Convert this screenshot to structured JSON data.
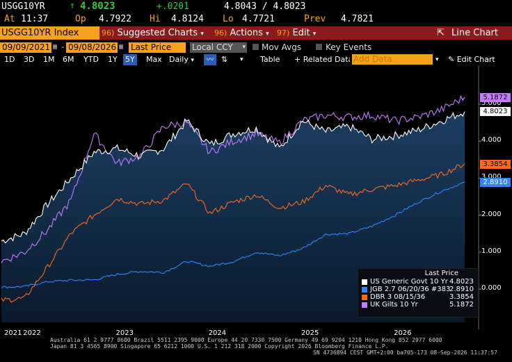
{
  "quote": {
    "ticker": "USGG10YR",
    "arrow": "↑",
    "last": "4.8023",
    "change": "+.0201",
    "bid_ask": "4.8043 / 4.8023",
    "at_label": "At",
    "time": "11:37",
    "op_label": "Op",
    "op": "4.7922",
    "hi_label": "Hi",
    "hi": "4.8124",
    "lo_label": "Lo",
    "lo": "4.7721",
    "prev_label": "Prev",
    "prev": "4.7821"
  },
  "toolbar": {
    "security": "USGG10YR Index",
    "suggested_num": "96)",
    "suggested": "Suggested Charts",
    "actions_num": "96)",
    "actions": "Actions",
    "edit_num": "97)",
    "edit": "Edit",
    "line_chart": "Line Chart"
  },
  "settings": {
    "start_date": "09/09/2021",
    "end_date": "09/08/2026",
    "field": "Last Price",
    "currency": "Local CCY",
    "mov_avgs": "Mov Avgs",
    "key_events": "Key Events"
  },
  "ranges": {
    "items": [
      "1D",
      "3D",
      "1M",
      "6M",
      "YTD",
      "1Y",
      "5Y",
      "Max"
    ],
    "selected": "5Y",
    "freq": "Daily",
    "table": "Table",
    "related": "+ Related Data",
    "add_data": "Add Data",
    "edit_chart": "Edit Chart"
  },
  "legend": {
    "header": "Last Price",
    "items": [
      {
        "label": "US Generic Govt 10 Yr",
        "value": "4.8023",
        "color": "#ffffff"
      },
      {
        "label": "JGB 2.7 06/20/36 #383",
        "value": "2.8910",
        "color": "#2f86ff"
      },
      {
        "label": "DBR 3 08/15/36",
        "value": "3.3854",
        "color": "#ff6a1a"
      },
      {
        "label": "UK Gilts 10 Yr",
        "value": "5.1872",
        "color": "#c57bff"
      }
    ]
  },
  "footer": {
    "line1": "Australia 61 2 9777 8600 Brazil 5511 2395 9000 Europe 44 20 7330 7500 Germany 49 69 9204 1210 Hong Kong 852 2977 6000",
    "line2": "Japan 81 3 4565 8900        Singapore 65 6212 1000        U.S. 1 212 318 2000             Copyright 2026 Bloomberg Finance L.P.",
    "line3": "SN 4736894 CEST GMT+2:00 ba705-173 08-Sep-2026 11:37:57"
  },
  "chart_data": {
    "type": "line",
    "x": [
      "2021-09",
      "2021-12",
      "2022-03",
      "2022-06",
      "2022-09",
      "2022-12",
      "2023-03",
      "2023-06",
      "2023-09",
      "2023-12",
      "2024-03",
      "2024-06",
      "2024-09",
      "2024-12",
      "2025-03",
      "2025-06",
      "2025-09",
      "2025-12",
      "2026-03",
      "2026-06",
      "2026-09"
    ],
    "xticks": [
      "2021",
      "2022",
      "2023",
      "2024",
      "2025",
      "2026"
    ],
    "ylim": [
      -0.9,
      5.9
    ],
    "yticks": [
      "0.000",
      "1.000",
      "2.000",
      "3.000",
      "4.000",
      "5.000"
    ],
    "grid": false,
    "legend_position": "bottom-right",
    "series": [
      {
        "name": "US Generic Govt 10 Yr",
        "color": "#ffffff",
        "last_value": "4.8023",
        "values": [
          1.3,
          1.5,
          2.3,
          3.0,
          3.7,
          3.8,
          3.6,
          3.8,
          4.55,
          3.9,
          4.2,
          4.35,
          3.8,
          4.55,
          4.25,
          4.4,
          4.05,
          4.15,
          4.3,
          4.55,
          4.8
        ]
      },
      {
        "name": "JGB 2.7 06/20/36 #383",
        "color": "#2f86ff",
        "last_value": "2.8910",
        "values": [
          0.05,
          0.07,
          0.2,
          0.24,
          0.25,
          0.4,
          0.48,
          0.45,
          0.75,
          0.62,
          0.74,
          1.0,
          0.9,
          1.1,
          1.48,
          1.5,
          1.7,
          2.0,
          2.35,
          2.65,
          2.89
        ]
      },
      {
        "name": "DBR 3 08/15/36",
        "color": "#ff6a1a",
        "last_value": "3.3854",
        "values": [
          -0.3,
          -0.25,
          0.6,
          1.5,
          2.0,
          2.45,
          2.3,
          2.4,
          2.85,
          2.05,
          2.35,
          2.55,
          2.2,
          2.35,
          2.8,
          2.55,
          2.7,
          2.8,
          2.95,
          3.1,
          3.39
        ]
      },
      {
        "name": "UK Gilts 10 Yr",
        "color": "#c57bff",
        "last_value": "5.1872",
        "values": [
          0.75,
          1.0,
          1.6,
          2.4,
          4.2,
          3.4,
          3.6,
          4.4,
          4.5,
          3.7,
          4.0,
          4.2,
          3.95,
          4.55,
          4.7,
          4.65,
          4.7,
          4.55,
          4.65,
          4.85,
          5.19
        ]
      }
    ]
  }
}
